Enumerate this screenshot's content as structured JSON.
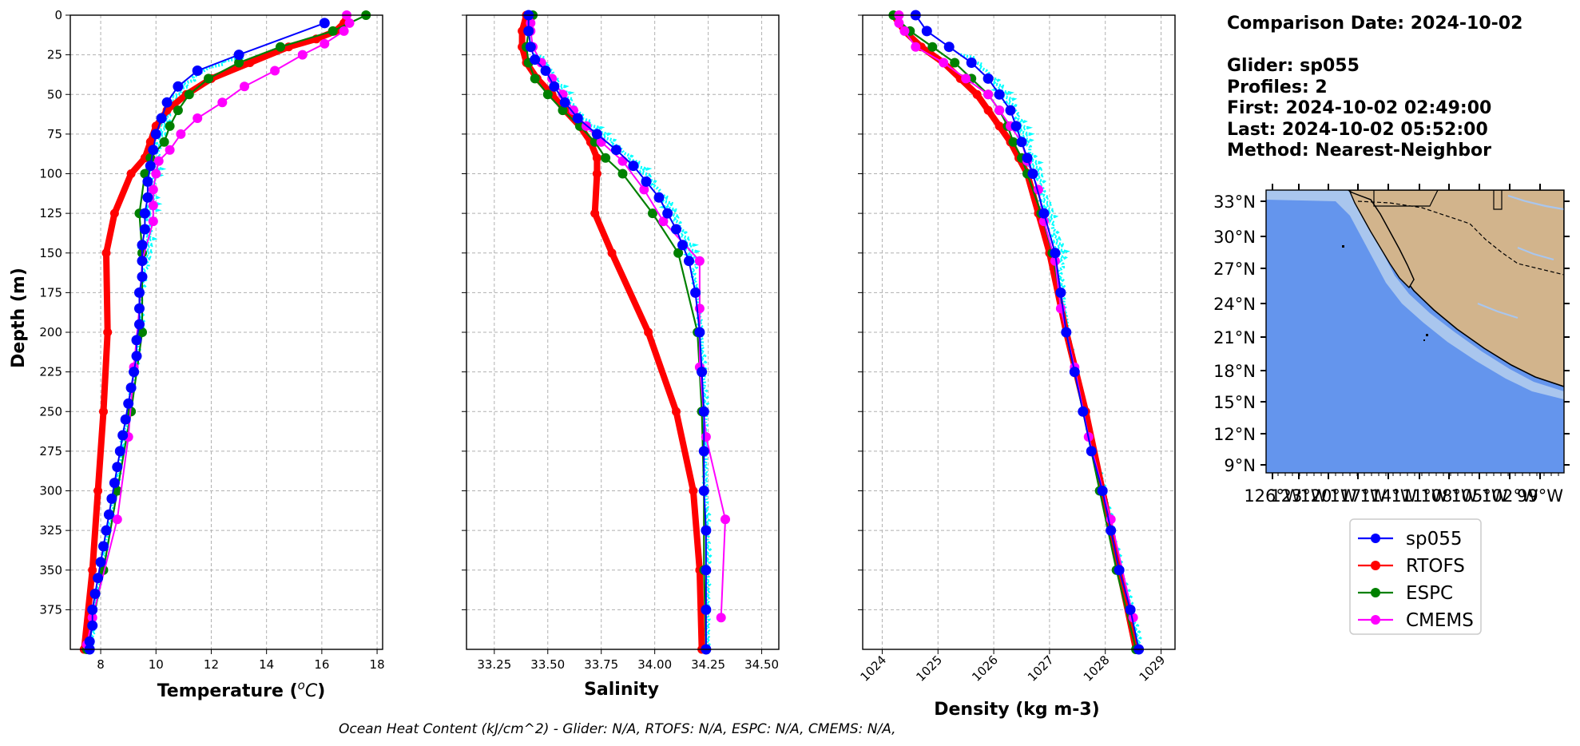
{
  "info": {
    "comparison_date": "Comparison Date: 2024-10-02",
    "glider": "Glider: sp055",
    "profiles": "Profiles: 2",
    "first": "First: 2024-10-02 02:49:00",
    "last": "Last: 2024-10-02 05:52:00",
    "method": "Method: Nearest-Neighbor"
  },
  "footer": "Ocean Heat Content (kJ/cm^2) - Glider: N/A,  RTOFS: N/A,  ESPC: N/A,  CMEMS: N/A,",
  "colors": {
    "sp055": "#0000ff",
    "sp055_raw": "#00ffff",
    "rtofs": "#ff0000",
    "espc": "#008000",
    "cmems": "#ff00ff",
    "ocean": "#6495ed",
    "shelf": "#a9c6ee",
    "land": "#d2b48c"
  },
  "legend": [
    "sp055",
    "RTOFS",
    "ESPC",
    "CMEMS"
  ],
  "map": {
    "lat_labels": [
      "33°N",
      "30°N",
      "27°N",
      "24°N",
      "21°N",
      "18°N",
      "15°N",
      "12°N",
      "9°N"
    ],
    "lon_labels": [
      "126°W",
      "123°W",
      "120°W",
      "117°W",
      "114°W",
      "111°W",
      "108°W",
      "105°W",
      "102°W",
      "99°W"
    ]
  },
  "chart_data": [
    {
      "type": "line",
      "xlabel": "Temperature (°C)",
      "ylabel": "Depth (m)",
      "xlim": [
        6.9,
        18.2
      ],
      "ylim": [
        400,
        0
      ],
      "xticks": [
        8,
        10,
        12,
        14,
        16,
        18
      ],
      "yticks": [
        0,
        25,
        50,
        75,
        100,
        125,
        150,
        175,
        200,
        225,
        250,
        275,
        300,
        325,
        350,
        375
      ],
      "grid": true,
      "series": [
        {
          "name": "sp055",
          "depth": [
            5,
            25,
            35,
            45,
            55,
            65,
            75,
            85,
            95,
            105,
            115,
            125,
            135,
            145,
            155,
            165,
            175,
            185,
            195,
            205,
            215,
            225,
            235,
            245,
            255,
            265,
            275,
            285,
            295,
            305,
            315,
            325,
            335,
            345,
            355,
            365,
            375,
            385,
            395,
            400
          ],
          "values": [
            16.1,
            13.0,
            11.5,
            10.8,
            10.4,
            10.2,
            10.0,
            9.9,
            9.8,
            9.7,
            9.7,
            9.6,
            9.6,
            9.5,
            9.5,
            9.5,
            9.4,
            9.4,
            9.4,
            9.3,
            9.3,
            9.2,
            9.1,
            9.0,
            8.9,
            8.8,
            8.7,
            8.6,
            8.5,
            8.4,
            8.3,
            8.2,
            8.1,
            8.0,
            7.9,
            7.8,
            7.7,
            7.7,
            7.6,
            7.6
          ]
        },
        {
          "name": "RTOFS",
          "depth": [
            0,
            5,
            10,
            15,
            20,
            30,
            40,
            50,
            60,
            70,
            80,
            90,
            100,
            125,
            150,
            200,
            250,
            300,
            350,
            400
          ],
          "values": [
            16.9,
            16.8,
            16.5,
            15.8,
            14.8,
            13.4,
            12.0,
            11.1,
            10.4,
            10.0,
            9.8,
            9.6,
            9.1,
            8.5,
            8.2,
            8.25,
            8.1,
            7.9,
            7.7,
            7.4
          ]
        },
        {
          "name": "ESPC",
          "depth": [
            0,
            10,
            20,
            30,
            40,
            50,
            60,
            70,
            80,
            90,
            100,
            125,
            150,
            200,
            250,
            300,
            350,
            400
          ],
          "values": [
            17.6,
            16.4,
            14.5,
            13.0,
            11.9,
            11.2,
            10.8,
            10.5,
            10.3,
            9.8,
            9.6,
            9.4,
            9.5,
            9.5,
            9.1,
            8.6,
            8.1,
            7.5
          ]
        },
        {
          "name": "CMEMS",
          "depth": [
            0,
            5,
            10,
            18,
            25,
            35,
            45,
            55,
            65,
            75,
            85,
            92,
            100,
            110,
            120,
            130,
            155,
            185,
            222,
            266,
            318,
            380,
            397
          ],
          "values": [
            16.9,
            17.0,
            16.8,
            16.1,
            15.3,
            14.3,
            13.2,
            12.4,
            11.5,
            10.9,
            10.5,
            10.1,
            10.0,
            9.9,
            9.9,
            9.9,
            9.5,
            9.4,
            9.2,
            9.0,
            8.6,
            7.7,
            7.5
          ]
        }
      ]
    },
    {
      "type": "line",
      "xlabel": "Salinity",
      "xlim": [
        33.12,
        34.58
      ],
      "ylim": [
        400,
        0
      ],
      "xticks": [
        33.25,
        33.5,
        33.75,
        34.0,
        34.25,
        34.5
      ],
      "xtick_labels": [
        "33.25",
        "33.50",
        "33.75",
        "34.00",
        "34.25",
        "34.50"
      ],
      "grid": true,
      "series": [
        {
          "name": "sp055",
          "depth": [
            0,
            10,
            20,
            28,
            35,
            45,
            55,
            65,
            75,
            85,
            95,
            105,
            115,
            125,
            135,
            145,
            155,
            175,
            200,
            225,
            250,
            275,
            300,
            325,
            350,
            375,
            400
          ],
          "values": [
            33.41,
            33.41,
            33.42,
            33.44,
            33.49,
            33.53,
            33.58,
            33.64,
            33.73,
            33.82,
            33.9,
            33.96,
            34.02,
            34.06,
            34.1,
            34.13,
            34.16,
            34.19,
            34.21,
            34.22,
            34.23,
            34.23,
            34.23,
            34.24,
            34.24,
            34.24,
            34.24
          ]
        },
        {
          "name": "RTOFS",
          "depth": [
            0,
            10,
            20,
            30,
            40,
            50,
            60,
            70,
            80,
            90,
            100,
            125,
            150,
            200,
            250,
            300,
            350,
            400
          ],
          "values": [
            33.4,
            33.38,
            33.38,
            33.4,
            33.45,
            33.52,
            33.58,
            33.65,
            33.7,
            33.73,
            33.73,
            33.72,
            33.8,
            33.97,
            34.1,
            34.18,
            34.21,
            34.22
          ]
        },
        {
          "name": "ESPC",
          "depth": [
            0,
            10,
            20,
            30,
            40,
            50,
            60,
            70,
            80,
            90,
            100,
            125,
            150,
            200,
            250,
            300,
            350,
            400
          ],
          "values": [
            33.43,
            33.41,
            33.4,
            33.41,
            33.44,
            33.5,
            33.57,
            33.65,
            33.72,
            33.77,
            33.85,
            33.99,
            34.11,
            34.2,
            34.22,
            34.23,
            34.23,
            34.24
          ]
        },
        {
          "name": "CMEMS",
          "depth": [
            0,
            5,
            10,
            20,
            30,
            40,
            50,
            60,
            70,
            80,
            92,
            110,
            130,
            155,
            185,
            222,
            266,
            318,
            380
          ],
          "values": [
            33.41,
            33.42,
            33.42,
            33.43,
            33.47,
            33.52,
            33.57,
            33.62,
            33.68,
            33.75,
            33.85,
            33.95,
            34.04,
            34.21,
            34.21,
            34.21,
            34.24,
            34.33,
            34.31
          ]
        }
      ]
    },
    {
      "type": "line",
      "xlabel": "Density (kg m-3)",
      "xlim": [
        1023.65,
        1029.25
      ],
      "ylim": [
        400,
        0
      ],
      "xticks": [
        1024,
        1025,
        1026,
        1027,
        1028,
        1029
      ],
      "grid": true,
      "series": [
        {
          "name": "sp055",
          "depth": [
            0,
            10,
            20,
            30,
            40,
            50,
            60,
            70,
            80,
            90,
            100,
            125,
            150,
            175,
            200,
            225,
            250,
            275,
            300,
            325,
            350,
            375,
            400
          ],
          "values": [
            1024.6,
            1024.8,
            1025.2,
            1025.6,
            1025.9,
            1026.1,
            1026.3,
            1026.4,
            1026.5,
            1026.6,
            1026.7,
            1026.9,
            1027.1,
            1027.2,
            1027.3,
            1027.45,
            1027.6,
            1027.75,
            1027.95,
            1028.1,
            1028.25,
            1028.45,
            1028.6
          ]
        },
        {
          "name": "RTOFS",
          "depth": [
            0,
            10,
            20,
            30,
            40,
            50,
            60,
            70,
            80,
            90,
            100,
            125,
            150,
            200,
            250,
            300,
            350,
            400
          ],
          "values": [
            1024.2,
            1024.4,
            1024.7,
            1025.1,
            1025.4,
            1025.7,
            1025.9,
            1026.1,
            1026.3,
            1026.45,
            1026.6,
            1026.8,
            1027.0,
            1027.3,
            1027.65,
            1027.95,
            1028.25,
            1028.55
          ]
        },
        {
          "name": "ESPC",
          "depth": [
            0,
            10,
            20,
            30,
            40,
            50,
            60,
            70,
            80,
            90,
            100,
            125,
            150,
            200,
            250,
            300,
            350,
            400
          ],
          "values": [
            1024.2,
            1024.5,
            1024.9,
            1025.3,
            1025.6,
            1025.9,
            1026.1,
            1026.25,
            1026.35,
            1026.5,
            1026.6,
            1026.85,
            1027.05,
            1027.3,
            1027.6,
            1027.9,
            1028.2,
            1028.55
          ]
        },
        {
          "name": "CMEMS",
          "depth": [
            0,
            5,
            10,
            20,
            30,
            40,
            50,
            60,
            70,
            80,
            92,
            110,
            130,
            155,
            185,
            222,
            266,
            318,
            380
          ],
          "values": [
            1024.3,
            1024.3,
            1024.4,
            1024.6,
            1025.1,
            1025.5,
            1025.9,
            1026.1,
            1026.3,
            1026.5,
            1026.6,
            1026.8,
            1026.9,
            1027.1,
            1027.2,
            1027.45,
            1027.7,
            1028.1,
            1028.5
          ]
        }
      ]
    }
  ]
}
